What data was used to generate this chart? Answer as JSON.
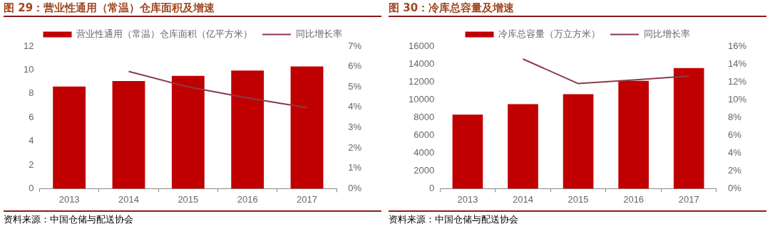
{
  "chart_data": [
    {
      "type": "bar",
      "title": "图 29：营业性通用（常温）仓库面积及增速",
      "categories": [
        "2013",
        "2014",
        "2015",
        "2016",
        "2017"
      ],
      "series": [
        {
          "name": "营业性通用（常温）仓库面积（亿平方米）",
          "color": "#c00000",
          "values": [
            8.6,
            9.06,
            9.5,
            9.95,
            10.3
          ]
        },
        {
          "type": "line",
          "axis": "y2",
          "name": "同比增长率",
          "color": "#8b3a4a",
          "values": [
            null,
            5.76,
            5.0,
            4.46,
            3.98
          ]
        }
      ],
      "ylim": [
        0,
        12
      ],
      "yticks": [
        0,
        2,
        4,
        6,
        8,
        10,
        12
      ],
      "y2lim": [
        0,
        7
      ],
      "y2ticks": [
        {
          "value": 0,
          "label": "0%"
        },
        {
          "value": 1,
          "label": "1%"
        },
        {
          "value": 2,
          "label": "2%"
        },
        {
          "value": 3,
          "label": "3%"
        },
        {
          "value": 4,
          "label": "4%"
        },
        {
          "value": 5,
          "label": "5%"
        },
        {
          "value": 6,
          "label": "6%"
        },
        {
          "value": 7,
          "label": "7%"
        }
      ],
      "legend": "top",
      "grid": false,
      "annotations": [
        "资料来源：中国仓储与配送协会"
      ]
    },
    {
      "type": "bar",
      "title": "图 30：冷库总容量及增速",
      "categories": [
        "2013",
        "2014",
        "2015",
        "2016",
        "2017"
      ],
      "series": [
        {
          "name": "冷库总容量（万立方米）",
          "color": "#c00000",
          "values": [
            8320,
            9500,
            10620,
            12100,
            13540
          ]
        },
        {
          "type": "line",
          "axis": "y2",
          "name": "同比增长率",
          "color": "#8b3a4a",
          "values": [
            null,
            14.56,
            11.8,
            12.2,
            12.64
          ]
        }
      ],
      "ylim": [
        0,
        16000
      ],
      "yticks": [
        0,
        2000,
        4000,
        6000,
        8000,
        10000,
        12000,
        14000,
        16000
      ],
      "y2lim": [
        0,
        16
      ],
      "y2ticks": [
        {
          "value": 0,
          "label": "0%"
        },
        {
          "value": 2,
          "label": "2%"
        },
        {
          "value": 4,
          "label": "4%"
        },
        {
          "value": 6,
          "label": "6%"
        },
        {
          "value": 8,
          "label": "8%"
        },
        {
          "value": 10,
          "label": "10%"
        },
        {
          "value": 12,
          "label": "12%"
        },
        {
          "value": 14,
          "label": "14%"
        },
        {
          "value": 16,
          "label": "16%"
        }
      ],
      "legend": "top",
      "grid": false,
      "annotations": [
        "资料来源：中国仓储与配送协会"
      ]
    }
  ]
}
